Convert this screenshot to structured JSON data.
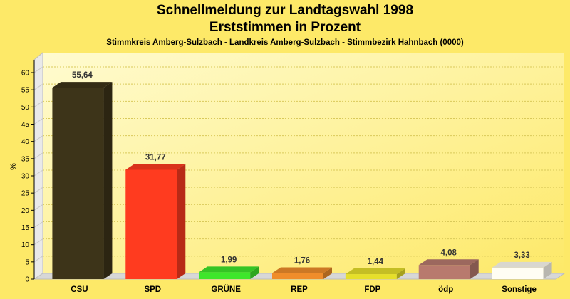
{
  "chart_data": {
    "type": "bar",
    "title": "Schnellmeldung zur Landtagswahl 1998",
    "subtitle": "Erststimmen in Prozent",
    "caption": "Stimmkreis Amberg-Sulzbach - Landkreis Amberg-Sulzbach - Stimmbezirk Hahnbach (0000)",
    "ylabel": "%",
    "ylim": [
      0,
      60
    ],
    "yticks": [
      0,
      5,
      10,
      15,
      20,
      25,
      30,
      35,
      40,
      45,
      50,
      55,
      60
    ],
    "categories": [
      "CSU",
      "SPD",
      "GRÜNE",
      "REP",
      "FDP",
      "ödp",
      "Sonstige"
    ],
    "values": [
      55.64,
      31.77,
      1.99,
      1.76,
      1.44,
      4.08,
      3.33
    ],
    "value_labels": [
      "55,64",
      "31,77",
      "1,99",
      "1,76",
      "1,44",
      "4,08",
      "3,33"
    ],
    "colors": [
      "#3d3419",
      "#ff3b1f",
      "#3ee62b",
      "#f08d2a",
      "#e6df2a",
      "#b87a6e",
      "#fffdf3"
    ],
    "grid": true,
    "legend": "none"
  }
}
